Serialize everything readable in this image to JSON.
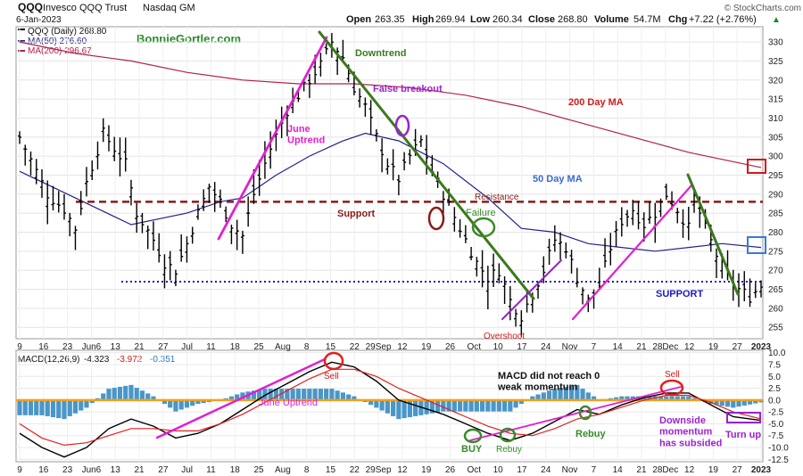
{
  "header": {
    "symbol": "QQQ",
    "name": "Invesco QQQ Trust",
    "exchange": "Nasdaq GM",
    "date": "6-Jan-2023",
    "open_label": "Open",
    "open": "263.35",
    "high_label": "High",
    "high": "269.94",
    "low_label": "Low",
    "low": "260.34",
    "close_label": "Close",
    "close": "268.80",
    "volume_label": "Volume",
    "volume": "54.7M",
    "chg_label": "Chg",
    "chg": "+7.22 (+2.76%)",
    "chg_arrow": "▲",
    "watermark": "© StockCharts.com"
  },
  "legend": {
    "price": "QQQ (Daily) 268.80",
    "ma50": "MA(50) 276.60",
    "ma200": "MA(200) 296.67",
    "site": "BonnieGortler.com"
  },
  "macd_legend": {
    "label": "MACD(12,26,9)",
    "macd": "-4.323",
    "signal": "-3.972",
    "hist": "-0.351"
  },
  "colors": {
    "price": "#000000",
    "ma50": "#22228a",
    "ma200": "#b2204a",
    "support_line": "#8b1a1a",
    "support_dotted": "#1a1ac0",
    "downtrend": "#3a7a1e",
    "uptrend": "#e020d0",
    "macd_zero": "#f0a020",
    "hist": "#4a96c8",
    "signal": "#e02020"
  },
  "x_labels": [
    "9",
    "16",
    "23",
    "Jun6",
    "13",
    "21",
    "27",
    "Jul",
    "11",
    "18",
    "25",
    "Aug",
    "8",
    "15",
    "22",
    "29Sep",
    "12",
    "19",
    "26",
    "Oct",
    "10",
    "17",
    "24",
    "Nov",
    "7",
    "14",
    "21",
    "28Dec",
    "12",
    "19",
    "27",
    "2023"
  ],
  "annotations": {
    "june_uptrend": "June\nUptrend",
    "downtrend": "Downtrend",
    "false_breakout": "False breakout",
    "ma200": "200 Day MA",
    "ma50": "50 Day MA",
    "resistance": "Resistance",
    "support": "Support",
    "failure": "Failure",
    "overshoot": "Overshoot",
    "support_caps": "SUPPORT",
    "macd_sell_1": "Sell",
    "macd_june_uptrend": "June Uptrend",
    "macd_note": "MACD did not reach 0\nweak momentum",
    "macd_sell_2": "Sell",
    "buy": "BUY",
    "rebuy_1": "Rebuy",
    "rebuy_2": "Rebuy",
    "downside": "Downside\nmomentum\nhas subsided",
    "turn_up": "Turn up"
  },
  "chart_data": [
    {
      "type": "ohlc",
      "title": "QQQ Invesco QQQ Trust Nasdaq GM",
      "ylim": [
        252,
        334
      ],
      "y_ticks": [
        255,
        260,
        265,
        270,
        275,
        280,
        285,
        290,
        295,
        300,
        305,
        310,
        315,
        320,
        325,
        330
      ],
      "x_ticks": [
        "9",
        "16",
        "23",
        "Jun6",
        "13",
        "21",
        "27",
        "Jul",
        "11",
        "18",
        "25",
        "Aug",
        "8",
        "15",
        "22",
        "29Sep",
        "12",
        "19",
        "26",
        "Oct",
        "10",
        "17",
        "24",
        "Nov",
        "7",
        "14",
        "21",
        "28Dec",
        "12",
        "19",
        "27",
        "2023"
      ],
      "close_path": [
        [
          0,
          305
        ],
        [
          3,
          296
        ],
        [
          5,
          290
        ],
        [
          8,
          286
        ],
        [
          10,
          281
        ],
        [
          12,
          293
        ],
        [
          15,
          306
        ],
        [
          17,
          302
        ],
        [
          19,
          298
        ],
        [
          21,
          285
        ],
        [
          24,
          278
        ],
        [
          26,
          272
        ],
        [
          28,
          270
        ],
        [
          30,
          277
        ],
        [
          32,
          285
        ],
        [
          34,
          292
        ],
        [
          36,
          288
        ],
        [
          38,
          282
        ],
        [
          40,
          279
        ],
        [
          42,
          290
        ],
        [
          45,
          302
        ],
        [
          48,
          312
        ],
        [
          51,
          318
        ],
        [
          54,
          324
        ],
        [
          56,
          330
        ],
        [
          58,
          326
        ],
        [
          60,
          318
        ],
        [
          62,
          313
        ],
        [
          64,
          305
        ],
        [
          66,
          298
        ],
        [
          68,
          294
        ],
        [
          70,
          300
        ],
        [
          72,
          304
        ],
        [
          74,
          296
        ],
        [
          76,
          290
        ],
        [
          78,
          284
        ],
        [
          80,
          278
        ],
        [
          82,
          272
        ],
        [
          84,
          268
        ],
        [
          86,
          270
        ],
        [
          88,
          262
        ],
        [
          90,
          258
        ],
        [
          92,
          264
        ],
        [
          94,
          270
        ],
        [
          96,
          278
        ],
        [
          98,
          276
        ],
        [
          100,
          268
        ],
        [
          102,
          262
        ],
        [
          104,
          266
        ],
        [
          106,
          276
        ],
        [
          108,
          283
        ],
        [
          110,
          286
        ],
        [
          112,
          282
        ],
        [
          114,
          285
        ],
        [
          116,
          290
        ],
        [
          118,
          286
        ],
        [
          120,
          281
        ],
        [
          121,
          289
        ],
        [
          123,
          281
        ],
        [
          125,
          274
        ],
        [
          127,
          268
        ],
        [
          129,
          265
        ],
        [
          131,
          263
        ],
        [
          133,
          266
        ]
      ],
      "ma50_path": [
        [
          0,
          296
        ],
        [
          10,
          289
        ],
        [
          20,
          282
        ],
        [
          30,
          285
        ],
        [
          36,
          288
        ],
        [
          40,
          289
        ],
        [
          46,
          295
        ],
        [
          52,
          300
        ],
        [
          58,
          304
        ],
        [
          62,
          306
        ],
        [
          68,
          304
        ],
        [
          76,
          298
        ],
        [
          84,
          289
        ],
        [
          90,
          281
        ],
        [
          96,
          280
        ],
        [
          102,
          277
        ],
        [
          108,
          276
        ],
        [
          114,
          275
        ],
        [
          120,
          276
        ],
        [
          126,
          277
        ],
        [
          133,
          276
        ]
      ],
      "ma200_path": [
        [
          0,
          330
        ],
        [
          10,
          327
        ],
        [
          20,
          325
        ],
        [
          30,
          322
        ],
        [
          40,
          320
        ],
        [
          50,
          319
        ],
        [
          60,
          319
        ],
        [
          70,
          318
        ],
        [
          80,
          316
        ],
        [
          90,
          313
        ],
        [
          100,
          309
        ],
        [
          110,
          305
        ],
        [
          120,
          301
        ],
        [
          133,
          297
        ]
      ],
      "resistance_level": 288,
      "support_level": 267
    },
    {
      "type": "macd",
      "title": "MACD(12,26,9)",
      "ylim": [
        -13,
        10.5
      ],
      "y_ticks": [
        10.0,
        7.5,
        5.0,
        2.5,
        0.0,
        -2.5,
        -5.0,
        -7.5,
        -10.0,
        -12.5
      ],
      "macd": [
        -4.323
      ],
      "signal": [
        -3.972
      ],
      "histogram": [
        -0.351
      ],
      "macd_path": [
        [
          0,
          -7
        ],
        [
          4,
          -10
        ],
        [
          8,
          -12
        ],
        [
          12,
          -10
        ],
        [
          16,
          -6
        ],
        [
          20,
          -4
        ],
        [
          24,
          -5.5
        ],
        [
          28,
          -8
        ],
        [
          32,
          -7
        ],
        [
          36,
          -5
        ],
        [
          40,
          -2
        ],
        [
          44,
          1
        ],
        [
          48,
          3.5
        ],
        [
          52,
          6
        ],
        [
          56,
          8
        ],
        [
          60,
          7
        ],
        [
          64,
          4
        ],
        [
          68,
          0
        ],
        [
          72,
          -1.5
        ],
        [
          76,
          -3
        ],
        [
          80,
          -5
        ],
        [
          84,
          -7
        ],
        [
          88,
          -8.5
        ],
        [
          92,
          -7
        ],
        [
          96,
          -4.5
        ],
        [
          100,
          -2
        ],
        [
          104,
          -3
        ],
        [
          108,
          -1
        ],
        [
          112,
          0.5
        ],
        [
          116,
          1.5
        ],
        [
          120,
          1.5
        ],
        [
          124,
          -1
        ],
        [
          128,
          -3.5
        ],
        [
          133,
          -4.3
        ]
      ],
      "signal_path": [
        [
          0,
          -5
        ],
        [
          4,
          -8
        ],
        [
          8,
          -9.5
        ],
        [
          12,
          -9
        ],
        [
          16,
          -7.5
        ],
        [
          20,
          -6
        ],
        [
          24,
          -6
        ],
        [
          28,
          -6.5
        ],
        [
          32,
          -6.5
        ],
        [
          36,
          -5
        ],
        [
          40,
          -3
        ],
        [
          44,
          -0.5
        ],
        [
          48,
          2
        ],
        [
          52,
          4.5
        ],
        [
          56,
          6.5
        ],
        [
          60,
          6.5
        ],
        [
          64,
          5
        ],
        [
          68,
          2.5
        ],
        [
          72,
          0.5
        ],
        [
          76,
          -1.5
        ],
        [
          80,
          -3.5
        ],
        [
          84,
          -5.5
        ],
        [
          88,
          -7
        ],
        [
          92,
          -7.5
        ],
        [
          96,
          -6
        ],
        [
          100,
          -4
        ],
        [
          104,
          -3
        ],
        [
          108,
          -1.5
        ],
        [
          112,
          0
        ],
        [
          116,
          1
        ],
        [
          120,
          1
        ],
        [
          124,
          -0.5
        ],
        [
          128,
          -2.5
        ],
        [
          133,
          -4
        ]
      ]
    }
  ]
}
